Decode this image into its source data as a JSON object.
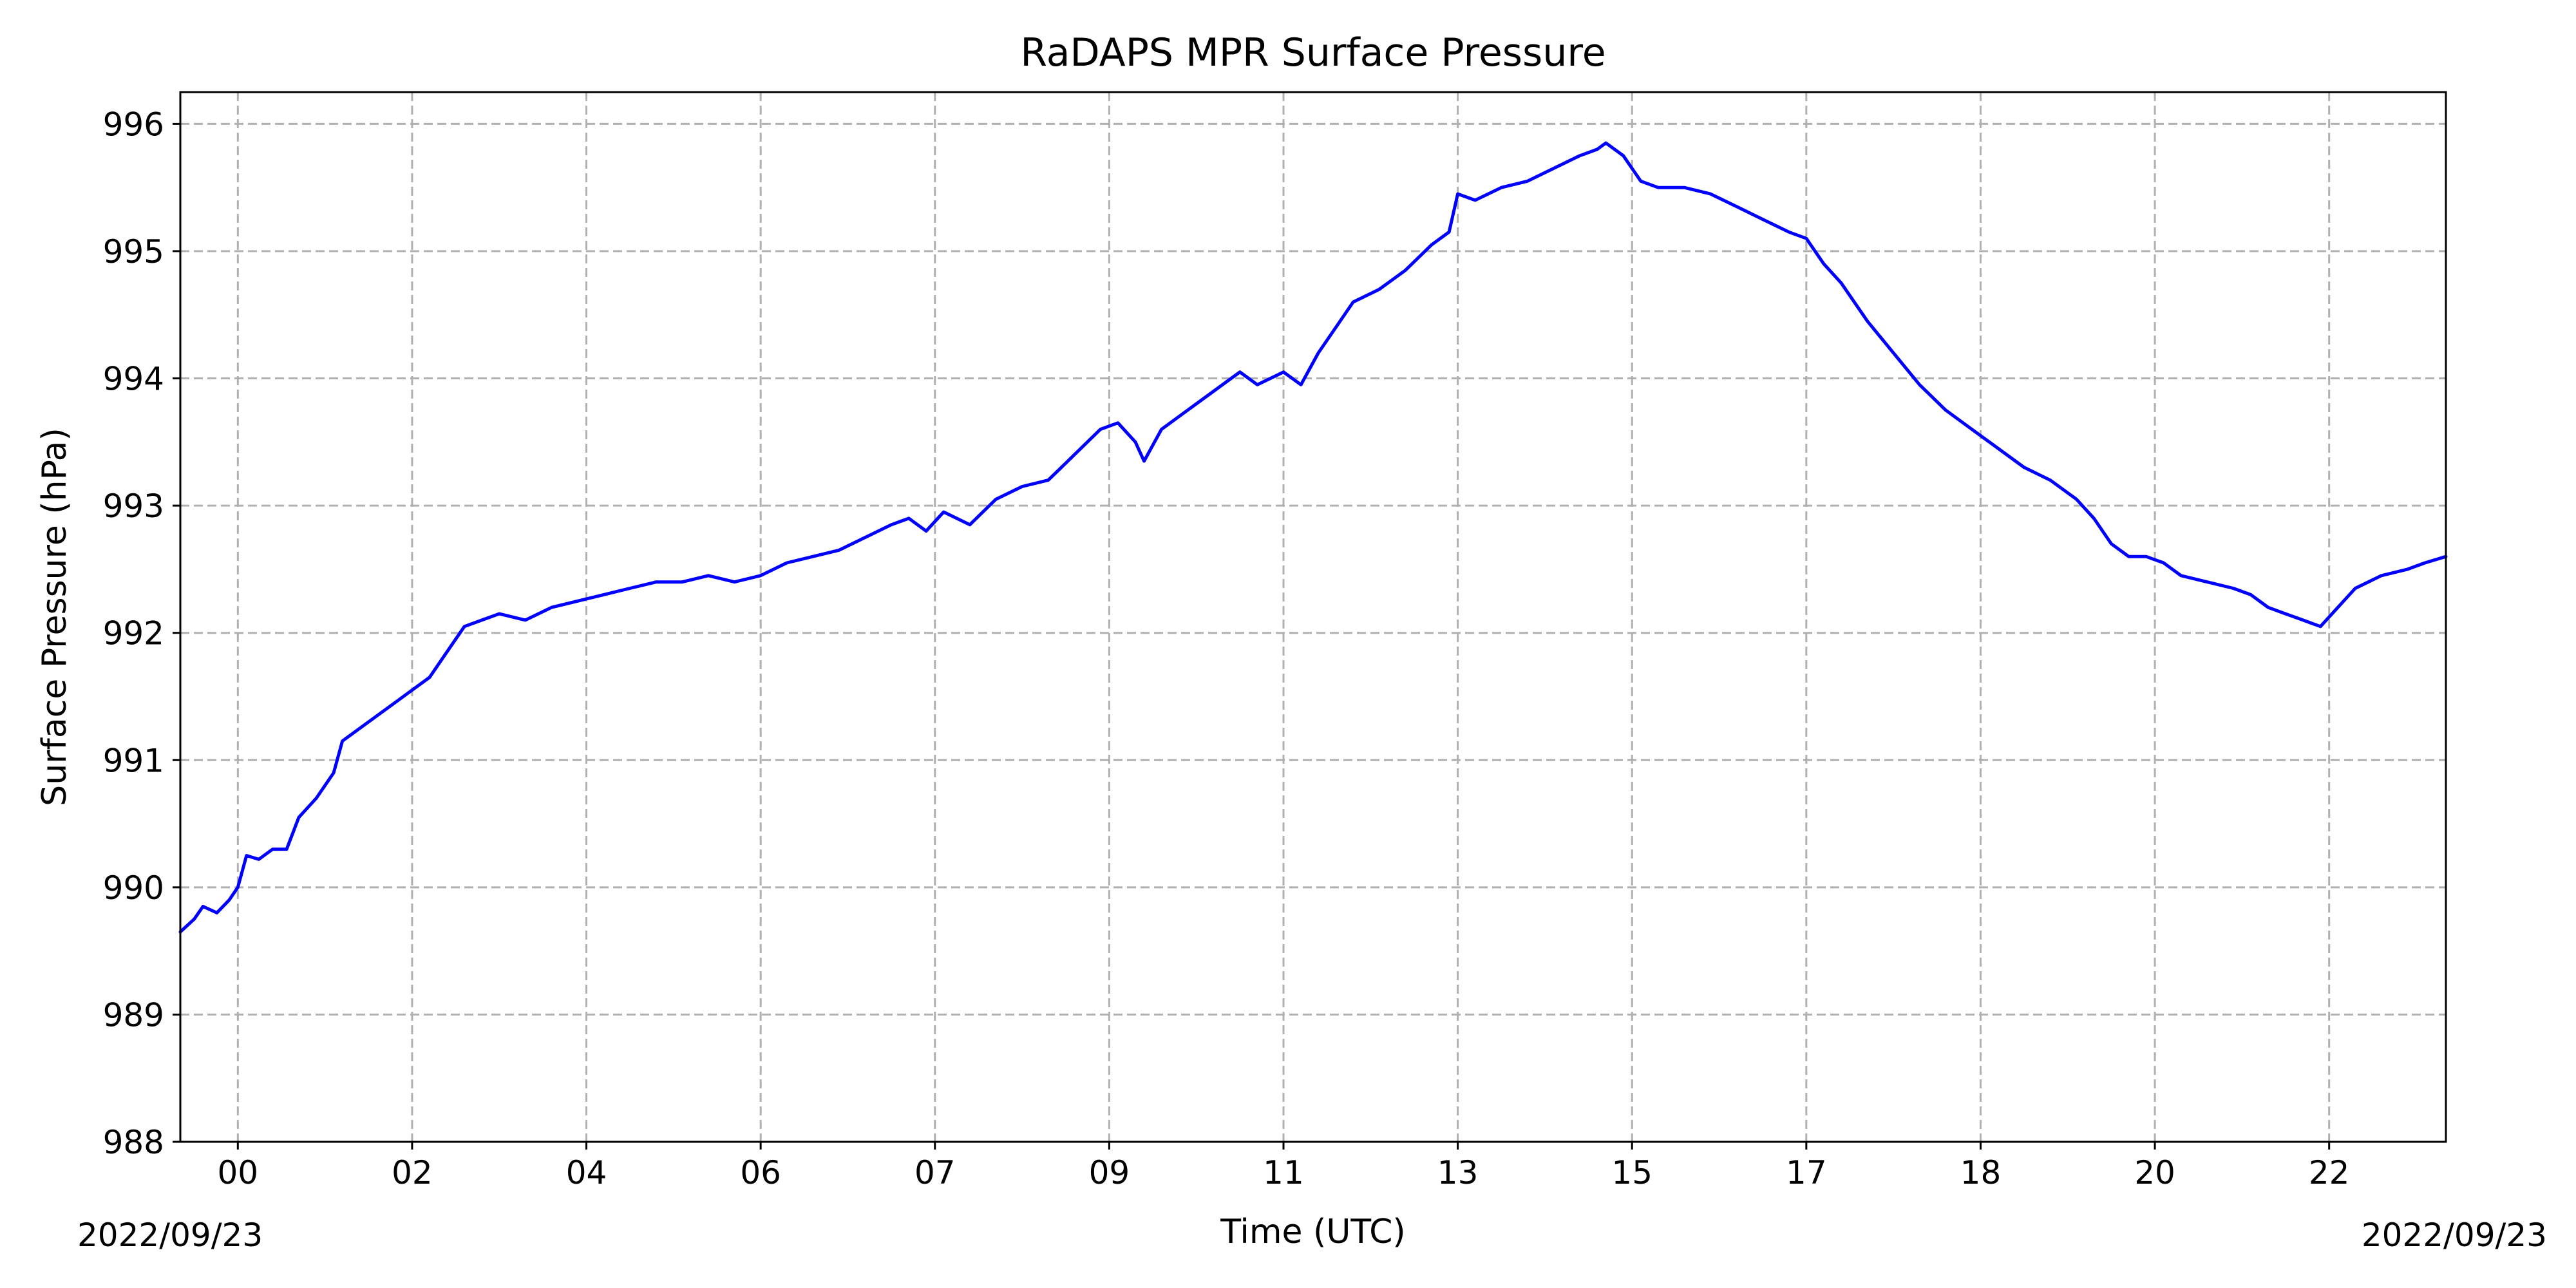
{
  "chart_data": {
    "type": "line",
    "title": "RaDAPS MPR Surface Pressure",
    "xlabel": "Time (UTC)",
    "ylabel": "Surface Pressure (hPa)",
    "x_tick_labels": [
      "00",
      "02",
      "04",
      "06",
      "07",
      "09",
      "11",
      "13",
      "15",
      "17",
      "18",
      "20",
      "22"
    ],
    "x_tick_positions": [
      0.0,
      1.0,
      2.0,
      3.0,
      4.0,
      5.0,
      6.0,
      7.0,
      8.0,
      9.0,
      10.0,
      11.0,
      12.0
    ],
    "xlim": [
      -0.33,
      12.67
    ],
    "date_left": "2022/09/23",
    "date_right": "2022/09/23",
    "ylim": [
      988,
      996.25
    ],
    "y_ticks": [
      988,
      989,
      990,
      991,
      992,
      993,
      994,
      995,
      996
    ],
    "grid": true,
    "line_color": "#0000ff",
    "series": [
      {
        "values": [
          [
            -0.33,
            989.65
          ],
          [
            -0.25,
            989.75
          ],
          [
            -0.2,
            989.85
          ],
          [
            -0.12,
            989.8
          ],
          [
            -0.05,
            989.9
          ],
          [
            0.0,
            990.0
          ],
          [
            0.05,
            990.25
          ],
          [
            0.12,
            990.22
          ],
          [
            0.2,
            990.3
          ],
          [
            0.28,
            990.3
          ],
          [
            0.35,
            990.55
          ],
          [
            0.45,
            990.7
          ],
          [
            0.55,
            990.9
          ],
          [
            0.6,
            991.15
          ],
          [
            0.7,
            991.25
          ],
          [
            0.8,
            991.35
          ],
          [
            0.9,
            991.45
          ],
          [
            1.0,
            991.55
          ],
          [
            1.1,
            991.65
          ],
          [
            1.2,
            991.85
          ],
          [
            1.3,
            992.05
          ],
          [
            1.4,
            992.1
          ],
          [
            1.5,
            992.15
          ],
          [
            1.65,
            992.1
          ],
          [
            1.8,
            992.2
          ],
          [
            1.95,
            992.25
          ],
          [
            2.1,
            992.3
          ],
          [
            2.25,
            992.35
          ],
          [
            2.4,
            992.4
          ],
          [
            2.55,
            992.4
          ],
          [
            2.7,
            992.45
          ],
          [
            2.85,
            992.4
          ],
          [
            3.0,
            992.45
          ],
          [
            3.15,
            992.55
          ],
          [
            3.3,
            992.6
          ],
          [
            3.45,
            992.65
          ],
          [
            3.6,
            992.75
          ],
          [
            3.75,
            992.85
          ],
          [
            3.85,
            992.9
          ],
          [
            3.95,
            992.8
          ],
          [
            4.05,
            992.95
          ],
          [
            4.2,
            992.85
          ],
          [
            4.35,
            993.05
          ],
          [
            4.5,
            993.15
          ],
          [
            4.65,
            993.2
          ],
          [
            4.8,
            993.4
          ],
          [
            4.95,
            993.6
          ],
          [
            5.05,
            993.65
          ],
          [
            5.15,
            993.5
          ],
          [
            5.2,
            993.35
          ],
          [
            5.3,
            993.6
          ],
          [
            5.45,
            993.75
          ],
          [
            5.6,
            993.9
          ],
          [
            5.75,
            994.05
          ],
          [
            5.85,
            993.95
          ],
          [
            6.0,
            994.05
          ],
          [
            6.1,
            993.95
          ],
          [
            6.2,
            994.2
          ],
          [
            6.3,
            994.4
          ],
          [
            6.4,
            994.6
          ],
          [
            6.55,
            994.7
          ],
          [
            6.7,
            994.85
          ],
          [
            6.85,
            995.05
          ],
          [
            6.95,
            995.15
          ],
          [
            7.0,
            995.45
          ],
          [
            7.1,
            995.4
          ],
          [
            7.25,
            995.5
          ],
          [
            7.4,
            995.55
          ],
          [
            7.55,
            995.65
          ],
          [
            7.7,
            995.75
          ],
          [
            7.8,
            995.8
          ],
          [
            7.85,
            995.85
          ],
          [
            7.95,
            995.75
          ],
          [
            8.05,
            995.55
          ],
          [
            8.15,
            995.5
          ],
          [
            8.3,
            995.5
          ],
          [
            8.45,
            995.45
          ],
          [
            8.6,
            995.35
          ],
          [
            8.75,
            995.25
          ],
          [
            8.9,
            995.15
          ],
          [
            9.0,
            995.1
          ],
          [
            9.1,
            994.9
          ],
          [
            9.2,
            994.75
          ],
          [
            9.35,
            994.45
          ],
          [
            9.5,
            994.2
          ],
          [
            9.65,
            993.95
          ],
          [
            9.8,
            993.75
          ],
          [
            9.95,
            993.6
          ],
          [
            10.1,
            993.45
          ],
          [
            10.25,
            993.3
          ],
          [
            10.4,
            993.2
          ],
          [
            10.55,
            993.05
          ],
          [
            10.65,
            992.9
          ],
          [
            10.75,
            992.7
          ],
          [
            10.85,
            992.6
          ],
          [
            10.95,
            992.6
          ],
          [
            11.05,
            992.55
          ],
          [
            11.15,
            992.45
          ],
          [
            11.3,
            992.4
          ],
          [
            11.45,
            992.35
          ],
          [
            11.55,
            992.3
          ],
          [
            11.65,
            992.2
          ],
          [
            11.75,
            992.15
          ],
          [
            11.85,
            992.1
          ],
          [
            11.95,
            992.05
          ],
          [
            12.05,
            992.2
          ],
          [
            12.15,
            992.35
          ],
          [
            12.3,
            992.45
          ],
          [
            12.45,
            992.5
          ],
          [
            12.55,
            992.55
          ],
          [
            12.67,
            992.6
          ]
        ]
      }
    ]
  }
}
